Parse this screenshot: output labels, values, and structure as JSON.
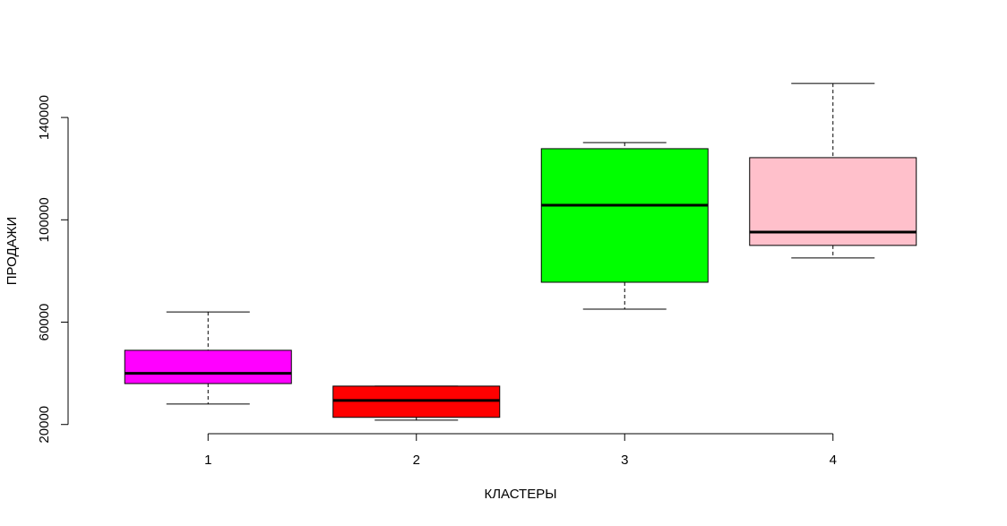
{
  "chart_data": {
    "type": "boxplot",
    "x_label": "КЛАСТЕРЫ",
    "y_label": "ПРОДАЖИ",
    "categories": [
      "1",
      "2",
      "3",
      "4"
    ],
    "colors": [
      "#ff00ff",
      "#ff0000",
      "#00ff00",
      "#ffc0cb"
    ],
    "boxes": [
      {
        "min": 28000,
        "q1": 36000,
        "median": 40000,
        "q3": 49000,
        "max": 64000
      },
      {
        "min": 21700,
        "q1": 22800,
        "median": 29400,
        "q3": 35000,
        "max": 35000
      },
      {
        "min": 65100,
        "q1": 75600,
        "median": 105700,
        "q3": 127800,
        "max": 130200
      },
      {
        "min": 85100,
        "q1": 90000,
        "median": 95200,
        "q3": 124300,
        "max": 153300
      }
    ],
    "ylim": [
      16400,
      158600
    ],
    "yticks": [
      20000,
      60000,
      100000,
      140000
    ]
  }
}
